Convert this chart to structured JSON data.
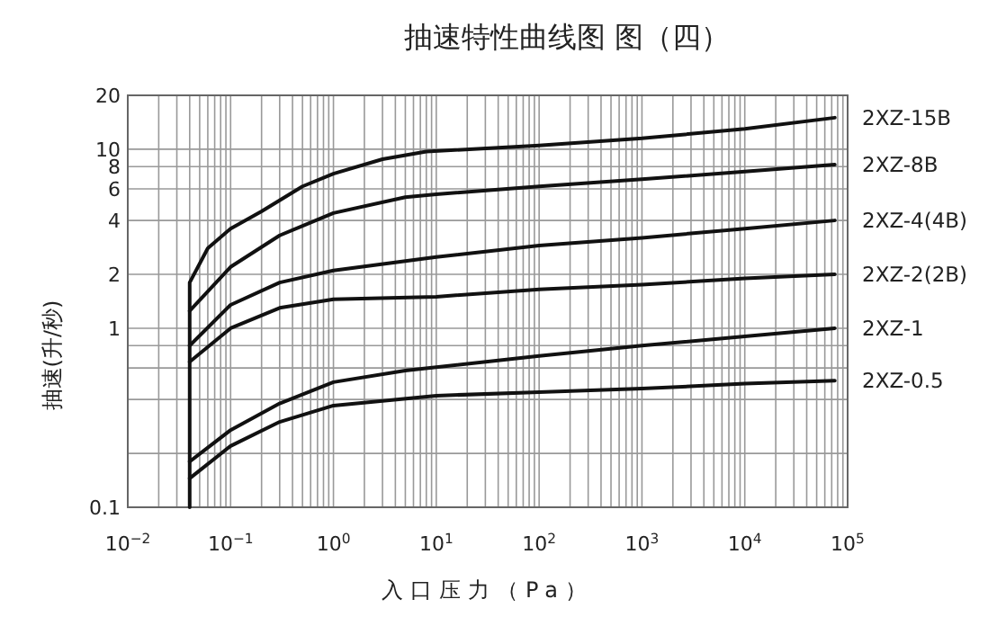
{
  "chart_data": {
    "type": "line",
    "title": "抽速特性曲线图 图（四）",
    "xlabel": "入口压力（Pa）",
    "ylabel": "抽速(升/秒)",
    "log": "xy",
    "grid": true,
    "legend": false,
    "marker": "none",
    "line_style": "solid",
    "xlim": [
      0.01,
      100000
    ],
    "ylim": [
      0.1,
      20
    ],
    "xticks": [
      {
        "value": 0.01,
        "label": "10$^{−2}$"
      },
      {
        "value": 0.02,
        "label": null
      },
      {
        "value": 0.03,
        "label": null
      },
      {
        "value": 0.04,
        "label": null
      },
      {
        "value": 0.05,
        "label": null
      },
      {
        "value": 0.06,
        "label": null
      },
      {
        "value": 0.07,
        "label": null
      },
      {
        "value": 0.08,
        "label": null
      },
      {
        "value": 0.09,
        "label": null
      },
      {
        "value": 0.1,
        "label": "10$^{−1}$"
      },
      {
        "value": 0.2,
        "label": null
      },
      {
        "value": 0.3,
        "label": null
      },
      {
        "value": 0.4,
        "label": null
      },
      {
        "value": 0.5,
        "label": null
      },
      {
        "value": 0.6,
        "label": null
      },
      {
        "value": 0.7,
        "label": null
      },
      {
        "value": 0.8,
        "label": null
      },
      {
        "value": 0.9,
        "label": null
      },
      {
        "value": 1,
        "label": "10$^{0}$"
      },
      {
        "value": 2,
        "label": null
      },
      {
        "value": 3,
        "label": null
      },
      {
        "value": 4,
        "label": null
      },
      {
        "value": 5,
        "label": null
      },
      {
        "value": 6,
        "label": null
      },
      {
        "value": 7,
        "label": null
      },
      {
        "value": 8,
        "label": null
      },
      {
        "value": 9,
        "label": null
      },
      {
        "value": 10,
        "label": "10$^{1}$"
      },
      {
        "value": 20,
        "label": null
      },
      {
        "value": 30,
        "label": null
      },
      {
        "value": 40,
        "label": null
      },
      {
        "value": 50,
        "label": null
      },
      {
        "value": 60,
        "label": null
      },
      {
        "value": 70,
        "label": null
      },
      {
        "value": 80,
        "label": null
      },
      {
        "value": 90,
        "label": null
      },
      {
        "value": 100,
        "label": "10$^{2}$"
      },
      {
        "value": 200,
        "label": null
      },
      {
        "value": 300,
        "label": null
      },
      {
        "value": 400,
        "label": null
      },
      {
        "value": 500,
        "label": null
      },
      {
        "value": 600,
        "label": null
      },
      {
        "value": 700,
        "label": null
      },
      {
        "value": 800,
        "label": null
      },
      {
        "value": 900,
        "label": null
      },
      {
        "value": 1000,
        "label": "10$^{3}$"
      },
      {
        "value": 2000,
        "label": null
      },
      {
        "value": 3000,
        "label": null
      },
      {
        "value": 4000,
        "label": null
      },
      {
        "value": 5000,
        "label": null
      },
      {
        "value": 6000,
        "label": null
      },
      {
        "value": 7000,
        "label": null
      },
      {
        "value": 8000,
        "label": null
      },
      {
        "value": 9000,
        "label": null
      },
      {
        "value": 10000,
        "label": "10$^{4}$"
      },
      {
        "value": 20000,
        "label": null
      },
      {
        "value": 30000,
        "label": null
      },
      {
        "value": 40000,
        "label": null
      },
      {
        "value": 50000,
        "label": null
      },
      {
        "value": 60000,
        "label": null
      },
      {
        "value": 70000,
        "label": null
      },
      {
        "value": 80000,
        "label": null
      },
      {
        "value": 90000,
        "label": null
      },
      {
        "value": 100000,
        "label": "10$^{5}$"
      }
    ],
    "yticks": [
      0.1,
      {
        "value": 0.2,
        "label": null
      },
      {
        "value": 0.4,
        "label": null
      },
      {
        "value": 0.6,
        "label": null
      },
      {
        "value": 0.8,
        "label": null
      },
      1,
      2,
      4,
      6,
      8,
      10,
      20
    ],
    "series": [
      {
        "name": "2XZ-15B",
        "color": "#111111",
        "x": [
          0.04,
          0.04,
          0.06,
          0.1,
          0.2,
          0.5,
          1,
          3,
          8,
          100,
          1000,
          10000,
          75000
        ],
        "values": [
          0.1,
          1.8,
          2.8,
          3.6,
          4.5,
          6.2,
          7.3,
          8.8,
          9.7,
          10.5,
          11.5,
          13,
          15
        ]
      },
      {
        "name": "2XZ-8B",
        "color": "#111111",
        "x": [
          0.04,
          0.1,
          0.3,
          1,
          5,
          10,
          100,
          1000,
          10000,
          75000
        ],
        "values": [
          1.25,
          2.2,
          3.3,
          4.4,
          5.4,
          5.6,
          6.2,
          6.8,
          7.5,
          8.2
        ]
      },
      {
        "name": "2XZ-4(4B)",
        "color": "#111111",
        "x": [
          0.04,
          0.1,
          0.3,
          1,
          10,
          100,
          1000,
          10000,
          75000
        ],
        "values": [
          0.8,
          1.35,
          1.8,
          2.1,
          2.5,
          2.9,
          3.2,
          3.6,
          4
        ]
      },
      {
        "name": "2XZ-2(2B)",
        "color": "#111111",
        "x": [
          0.04,
          0.1,
          0.3,
          1,
          10,
          100,
          1000,
          10000,
          75000
        ],
        "values": [
          0.65,
          1,
          1.3,
          1.45,
          1.5,
          1.65,
          1.75,
          1.9,
          2
        ]
      },
      {
        "name": "2XZ-1",
        "color": "#111111",
        "x": [
          0.04,
          0.1,
          0.3,
          1,
          5,
          100,
          1000,
          10000,
          75000
        ],
        "values": [
          0.18,
          0.27,
          0.38,
          0.5,
          0.58,
          0.7,
          0.8,
          0.9,
          1
        ]
      },
      {
        "name": "2XZ-0.5",
        "color": "#111111",
        "x": [
          0.04,
          0.1,
          0.3,
          1,
          10,
          100,
          1000,
          10000,
          75000
        ],
        "values": [
          0.145,
          0.22,
          0.3,
          0.37,
          0.42,
          0.44,
          0.46,
          0.49,
          0.51
        ]
      }
    ]
  }
}
